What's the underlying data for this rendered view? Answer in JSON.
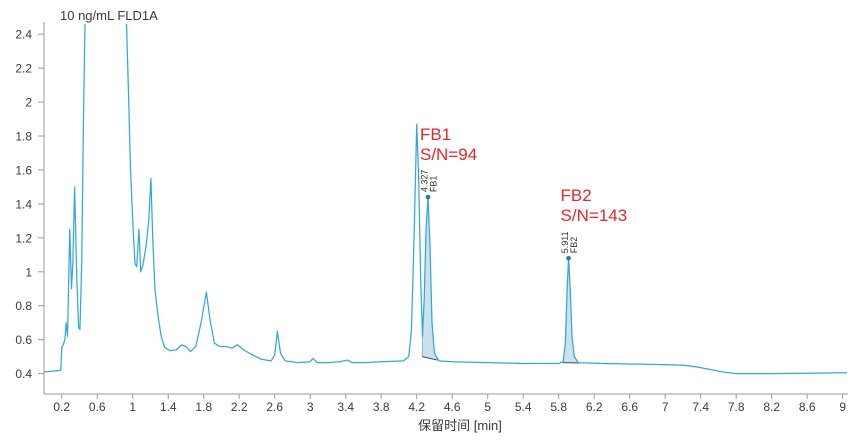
{
  "chart_data": {
    "type": "line",
    "title": "10 ng/mL FLD1A",
    "xlabel": "保留时间 [min]",
    "xlim": [
      0,
      9.06
    ],
    "ylim": [
      0.28,
      2.46
    ],
    "xticks": [
      "0.2",
      "0.6",
      "1",
      "1.4",
      "1.8",
      "2.2",
      "2.6",
      "3",
      "3.4",
      "3.8",
      "4.2",
      "4.6",
      "5",
      "5.4",
      "5.8",
      "6.2",
      "6.6",
      "7",
      "7.4",
      "7.8",
      "8.2",
      "8.6",
      "9"
    ],
    "yticks": [
      "0.4",
      "0.6",
      "0.8",
      "1",
      "1.2",
      "1.4",
      "1.6",
      "1.8",
      "2",
      "2.2",
      "2.4"
    ],
    "grid": false,
    "legend": "none",
    "colors": {
      "trace": "#33a8da",
      "annotation": "#e8262b",
      "integration_fill": "#a9cde0",
      "baseline": "#4a4a4a",
      "marker": "#2a7db8"
    },
    "series": [
      {
        "x": [
          0.0,
          0.1,
          0.19,
          0.2,
          0.22,
          0.235,
          0.25,
          0.265,
          0.29,
          0.31,
          0.325,
          0.345,
          0.37,
          0.39,
          0.405,
          0.425,
          0.445,
          0.462,
          null,
          0.93,
          0.955,
          0.975,
          1.0,
          1.025,
          1.045,
          1.07,
          1.09,
          1.115,
          1.15,
          1.18,
          1.205,
          1.225,
          1.25,
          1.28,
          1.32,
          1.36,
          1.42,
          1.49,
          1.55,
          1.6,
          1.65,
          1.71,
          1.77,
          1.83,
          1.87,
          1.92,
          1.98,
          2.05,
          2.12,
          2.18,
          2.25,
          2.35,
          2.45,
          2.56,
          2.6,
          2.63,
          2.665,
          2.72,
          2.85,
          3.0,
          3.03,
          3.08,
          3.2,
          3.33,
          3.42,
          3.47,
          3.6,
          3.8,
          4.05,
          4.11,
          4.14,
          4.17,
          4.2,
          4.222,
          4.245,
          4.265,
          4.285,
          4.305,
          4.327,
          4.35,
          4.372,
          4.4,
          4.45,
          4.6,
          5.0,
          5.4,
          5.8,
          5.85,
          5.875,
          5.895,
          5.911,
          5.93,
          5.95,
          5.975,
          6.02,
          6.3,
          6.8,
          7.2,
          7.35,
          7.5,
          7.65,
          7.8,
          8.2,
          8.6,
          9.0,
          9.05
        ],
        "y": [
          0.41,
          0.415,
          0.42,
          0.55,
          0.575,
          0.6,
          0.7,
          0.62,
          1.25,
          0.9,
          1.05,
          1.5,
          0.95,
          0.67,
          0.66,
          1.05,
          1.9,
          2.46,
          null,
          2.46,
          2.0,
          1.6,
          1.3,
          1.05,
          1.03,
          1.25,
          1.0,
          1.04,
          1.15,
          1.3,
          1.55,
          1.2,
          0.9,
          0.76,
          0.62,
          0.555,
          0.535,
          0.54,
          0.57,
          0.56,
          0.53,
          0.56,
          0.7,
          0.88,
          0.72,
          0.58,
          0.56,
          0.56,
          0.55,
          0.57,
          0.54,
          0.51,
          0.485,
          0.475,
          0.51,
          0.65,
          0.52,
          0.475,
          0.465,
          0.47,
          0.49,
          0.465,
          0.465,
          0.47,
          0.48,
          0.465,
          0.465,
          0.47,
          0.475,
          0.5,
          0.65,
          1.2,
          1.87,
          1.55,
          0.95,
          0.62,
          0.85,
          1.25,
          1.44,
          1.15,
          0.7,
          0.52,
          0.475,
          0.47,
          0.465,
          0.46,
          0.46,
          0.47,
          0.58,
          0.9,
          1.08,
          0.9,
          0.62,
          0.5,
          0.465,
          0.46,
          0.455,
          0.45,
          0.44,
          0.425,
          0.41,
          0.4,
          0.4,
          0.402,
          0.405,
          0.405
        ]
      }
    ],
    "peaks": [
      {
        "label": "FB1",
        "rt": "4.327",
        "apex": 1.44,
        "sn": "S/N=94",
        "integration": {
          "start": 4.262,
          "end": 4.43,
          "baseline": [
            0.5,
            0.48
          ]
        }
      },
      {
        "label": "FB2",
        "rt": "5.911",
        "apex": 1.08,
        "sn": "S/N=143",
        "integration": {
          "start": 5.845,
          "end": 6.03,
          "baseline": [
            0.465,
            0.463
          ]
        }
      }
    ]
  }
}
